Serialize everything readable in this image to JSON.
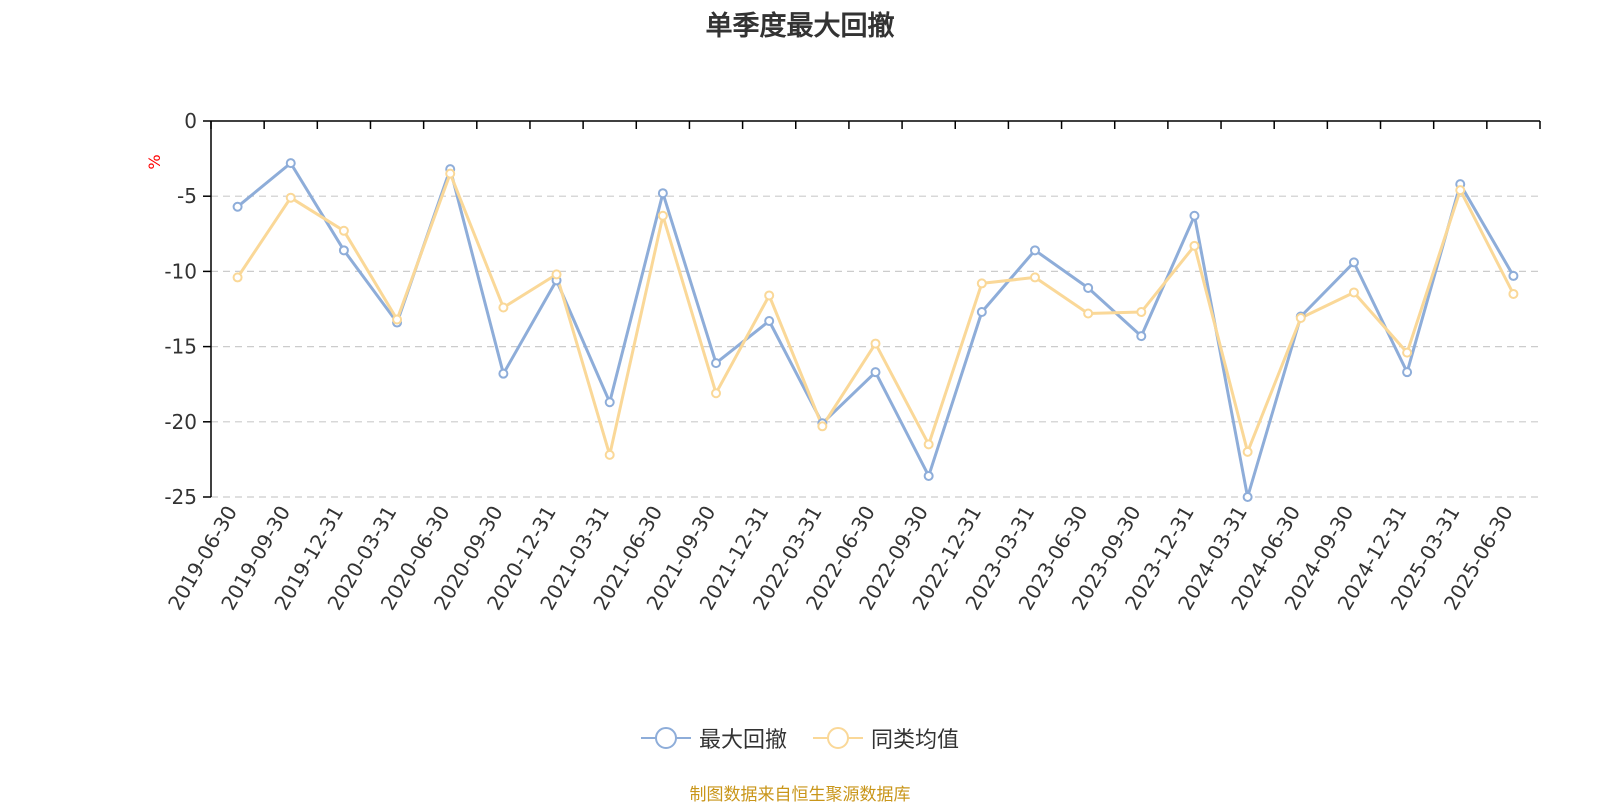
{
  "title": "单季度最大回撤",
  "source_note": "制图数据来自恒生聚源数据库",
  "colors": {
    "series1": "#8eadd9",
    "series2": "#fad898",
    "grid": "#cccccc",
    "axis": "#000000",
    "unit": "#ff0000"
  },
  "chart_data": {
    "type": "line",
    "title": "单季度最大回撤",
    "ylabel": "%",
    "xlabel": "",
    "ylim": [
      -25,
      0
    ],
    "yticks": [
      0,
      -5,
      -10,
      -15,
      -20,
      -25
    ],
    "grid": true,
    "legend_position": "bottom",
    "categories": [
      "2019-06-30",
      "2019-09-30",
      "2019-12-31",
      "2020-03-31",
      "2020-06-30",
      "2020-09-30",
      "2020-12-31",
      "2021-03-31",
      "2021-06-30",
      "2021-09-30",
      "2021-12-31",
      "2022-03-31",
      "2022-06-30",
      "2022-09-30",
      "2022-12-31",
      "2023-03-31",
      "2023-06-30",
      "2023-09-30",
      "2023-12-31",
      "2024-03-31",
      "2024-06-30",
      "2024-09-30",
      "2024-12-31",
      "2025-03-31",
      "2025-06-30"
    ],
    "series": [
      {
        "name": "最大回撤",
        "values": [
          -5.7,
          -2.8,
          -8.6,
          -13.4,
          -3.2,
          -16.8,
          -10.6,
          -18.7,
          -4.8,
          -16.1,
          -13.3,
          -20.1,
          -16.7,
          -23.6,
          -12.7,
          -8.6,
          -11.1,
          -14.3,
          -6.3,
          -25.0,
          -13.0,
          -9.4,
          -16.7,
          -4.2,
          -10.3
        ]
      },
      {
        "name": "同类均值",
        "values": [
          -10.4,
          -5.1,
          -7.3,
          -13.2,
          -3.5,
          -12.4,
          -10.2,
          -22.2,
          -6.3,
          -18.1,
          -11.6,
          -20.3,
          -14.8,
          -21.5,
          -10.8,
          -10.4,
          -12.8,
          -12.7,
          -8.3,
          -22.0,
          -13.1,
          -11.4,
          -15.4,
          -4.6,
          -11.5
        ]
      }
    ]
  }
}
